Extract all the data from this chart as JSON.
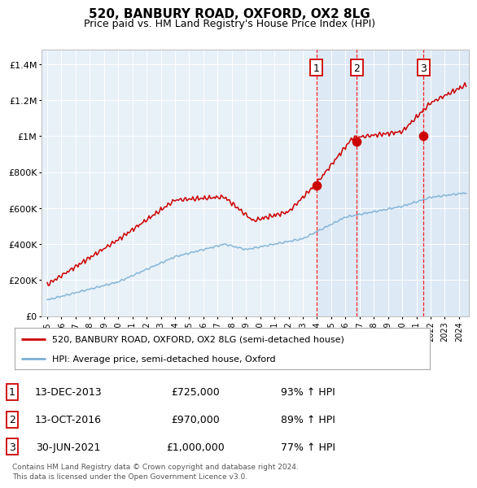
{
  "title": "520, BANBURY ROAD, OXFORD, OX2 8LG",
  "subtitle": "Price paid vs. HM Land Registry's House Price Index (HPI)",
  "red_label": "520, BANBURY ROAD, OXFORD, OX2 8LG (semi-detached house)",
  "blue_label": "HPI: Average price, semi-detached house, Oxford",
  "red_color": "#cc0000",
  "blue_color": "#7bafd4",
  "background_color": "#e8f0f8",
  "shade_color": "#dce8f5",
  "sale_dates_num": [
    2013.95,
    2016.79,
    2021.5
  ],
  "sale_prices": [
    725000,
    970000,
    1000000
  ],
  "sale_labels": [
    "1",
    "2",
    "3"
  ],
  "transactions": [
    {
      "label": "1",
      "date": "13-DEC-2013",
      "price": "£725,000",
      "pct": "93% ↑ HPI"
    },
    {
      "label": "2",
      "date": "13-OCT-2016",
      "price": "£970,000",
      "pct": "89% ↑ HPI"
    },
    {
      "label": "3",
      "date": "30-JUN-2021",
      "price": "£1,000,000",
      "pct": "77% ↑ HPI"
    }
  ],
  "footnote": "Contains HM Land Registry data © Crown copyright and database right 2024.\nThis data is licensed under the Open Government Licence v3.0.",
  "xmin": 1994.6,
  "xmax": 2024.7,
  "ylim_max": 1480000
}
